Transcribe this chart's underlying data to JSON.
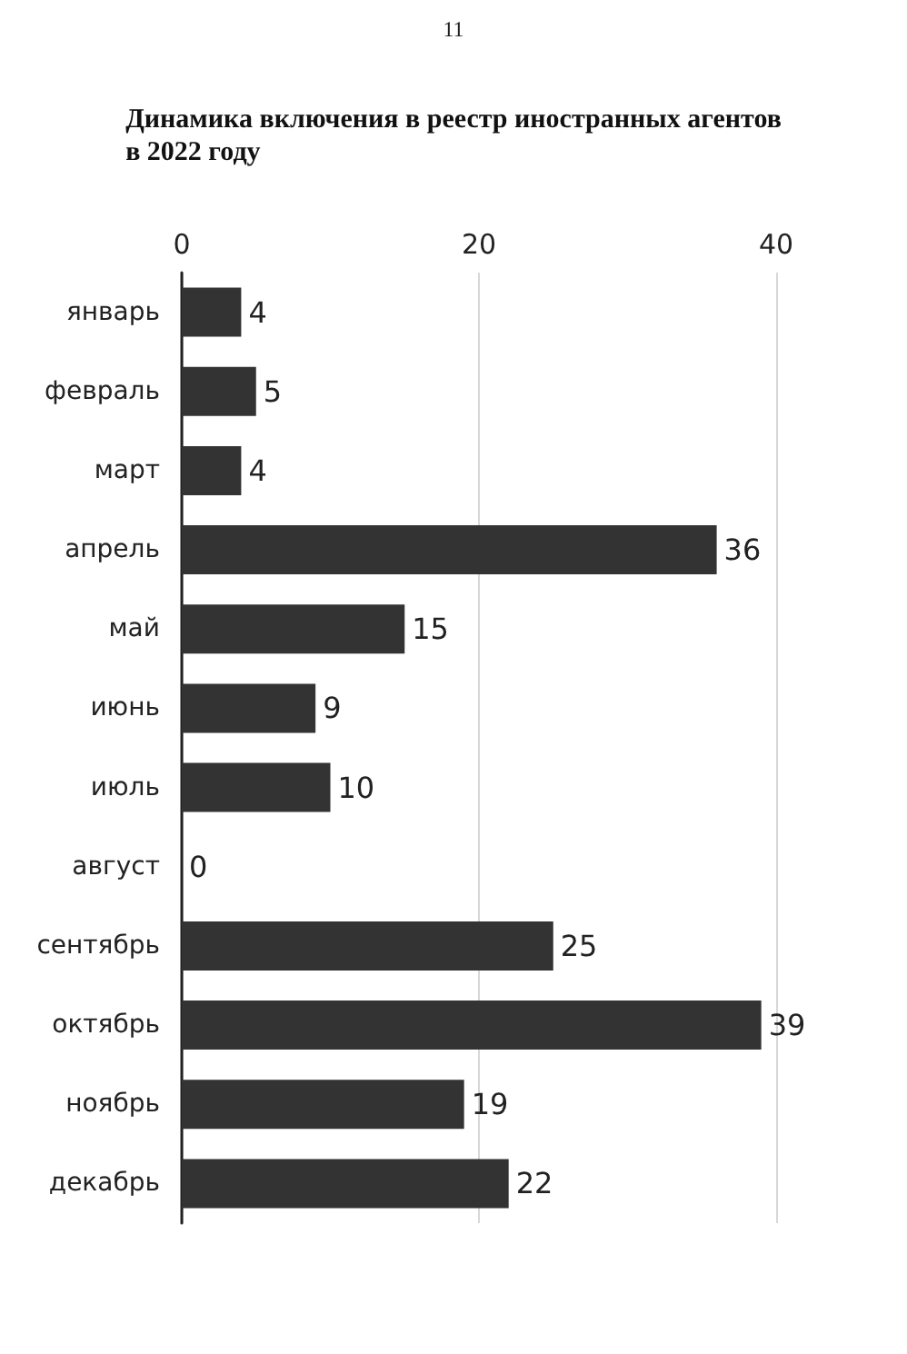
{
  "chart_data": {
    "type": "bar",
    "orientation": "horizontal",
    "title": "Динамика включения в реестр иностранных агентов\nв 2022 году",
    "annotations": [
      "11"
    ],
    "categories": [
      "январь",
      "февраль",
      "март",
      "апрель",
      "май",
      "июнь",
      "июль",
      "август",
      "сентябрь",
      "октябрь",
      "ноябрь",
      "декабрь"
    ],
    "values": [
      4,
      5,
      4,
      36,
      15,
      9,
      10,
      0,
      25,
      39,
      19,
      22
    ],
    "color": "#333333",
    "xlim": [
      0,
      40
    ],
    "xticks": [
      0,
      20,
      40
    ],
    "grid": "x",
    "data_labels": true
  }
}
